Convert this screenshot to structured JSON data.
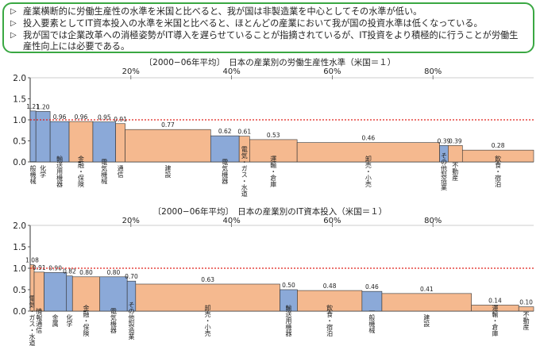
{
  "summary": {
    "bullet_icon": "triangle-right-icon",
    "bullets": [
      "産業横断的に労働生産性の水準を米国と比べると、我が国は非製造業を中心としてその水準が低い。",
      "投入要素としてIT資本投入の水準を米国と比べると、ほとんどの産業において我が国の投資水準は低くなっている。",
      "我が国では企業改革への消極姿勢がIT導入を遅らせていることが指摘されているが、IT投資をより積極的に行うことが労働生産性向上には必要である。"
    ]
  },
  "colors": {
    "frame_green": "#3aa843",
    "manufacturing_blue": "#8ba9d8",
    "nonmanufacturing_orange": "#f5b98f",
    "reference_red": "#e0201b",
    "bar_outline": "#333333"
  },
  "chart_data": [
    {
      "type": "bar",
      "title": "〔2000−06年平均〕　日本の産業別の労働生産性水準（米国＝１）",
      "ylim": [
        0,
        2.0
      ],
      "yticks": [
        "2.0",
        "1.5",
        "1.0",
        "0.5",
        "0.0"
      ],
      "xticks": [
        "20%",
        "40%",
        "60%",
        "80%"
      ],
      "reference_line": 1.0,
      "bars": [
        {
          "label": "一般機械",
          "value": 1.21,
          "width": 1.2,
          "group": "manufacturing"
        },
        {
          "label": "化学",
          "value": 1.2,
          "width": 3.0,
          "group": "manufacturing"
        },
        {
          "label": "輸送用機器",
          "value": 0.96,
          "width": 4.0,
          "group": "manufacturing"
        },
        {
          "label": "金融・保険",
          "value": 0.96,
          "width": 5.0,
          "group": "nonmanufacturing"
        },
        {
          "label": "電気機械",
          "value": 0.95,
          "width": 4.8,
          "group": "manufacturing"
        },
        {
          "label": "通信",
          "value": 0.91,
          "width": 2.0,
          "group": "nonmanufacturing"
        },
        {
          "label": "建設",
          "value": 0.77,
          "width": 18.0,
          "group": "nonmanufacturing"
        },
        {
          "label": "電気機器",
          "value": 0.62,
          "width": 6.0,
          "group": "manufacturing"
        },
        {
          "label": "電気・ガス・水道",
          "value": 0.61,
          "width": 2.2,
          "group": "nonmanufacturing"
        },
        {
          "label": "運輸・倉庫",
          "value": 0.53,
          "width": 10.0,
          "group": "nonmanufacturing"
        },
        {
          "label": "卸売・小売",
          "value": 0.46,
          "width": 30.0,
          "group": "nonmanufacturing"
        },
        {
          "label": "その他製造業",
          "value": 0.39,
          "width": 1.8,
          "group": "manufacturing"
        },
        {
          "label": "不動産",
          "value": 0.39,
          "width": 3.0,
          "group": "nonmanufacturing"
        },
        {
          "label": "飲食・宿泊",
          "value": 0.28,
          "width": 15.0,
          "group": "nonmanufacturing"
        }
      ]
    },
    {
      "type": "bar",
      "title": "〔2000−06年平均〕　日本の産業別のIT資本投入（米国＝１）",
      "ylim": [
        0,
        2.0
      ],
      "yticks": [
        "2.0",
        "1.5",
        "1.0",
        "0.5",
        "0.0"
      ],
      "xticks": [
        "20%",
        "40%",
        "60%",
        "80%"
      ],
      "reference_line": 1.0,
      "bars": [
        {
          "label": "電気・ガス・水道",
          "value": 1.08,
          "width": 0.8,
          "group": "nonmanufacturing"
        },
        {
          "label": "情報通信",
          "value": 0.91,
          "width": 2.0,
          "group": "nonmanufacturing"
        },
        {
          "label": "金属",
          "value": 0.9,
          "width": 4.5,
          "group": "manufacturing"
        },
        {
          "label": "化学",
          "value": 0.82,
          "width": 1.2,
          "group": "manufacturing"
        },
        {
          "label": "金融・保険",
          "value": 0.8,
          "width": 5.5,
          "group": "nonmanufacturing"
        },
        {
          "label": "電気機器",
          "value": 0.8,
          "width": 5.5,
          "group": "manufacturing"
        },
        {
          "label": "その他製造業",
          "value": 0.7,
          "width": 1.7,
          "group": "manufacturing"
        },
        {
          "label": "卸売・小売",
          "value": 0.63,
          "width": 29.0,
          "group": "nonmanufacturing"
        },
        {
          "label": "輸送用機器",
          "value": 0.5,
          "width": 3.5,
          "group": "manufacturing"
        },
        {
          "label": "飲食・宿泊",
          "value": 0.48,
          "width": 13.0,
          "group": "nonmanufacturing"
        },
        {
          "label": "一般機械",
          "value": 0.46,
          "width": 4.0,
          "group": "manufacturing"
        },
        {
          "label": "建設",
          "value": 0.41,
          "width": 18.0,
          "group": "nonmanufacturing"
        },
        {
          "label": "運輸・倉庫",
          "value": 0.14,
          "width": 9.5,
          "group": "nonmanufacturing"
        },
        {
          "label": "不動産",
          "value": 0.1,
          "width": 3.0,
          "group": "nonmanufacturing"
        }
      ]
    }
  ]
}
